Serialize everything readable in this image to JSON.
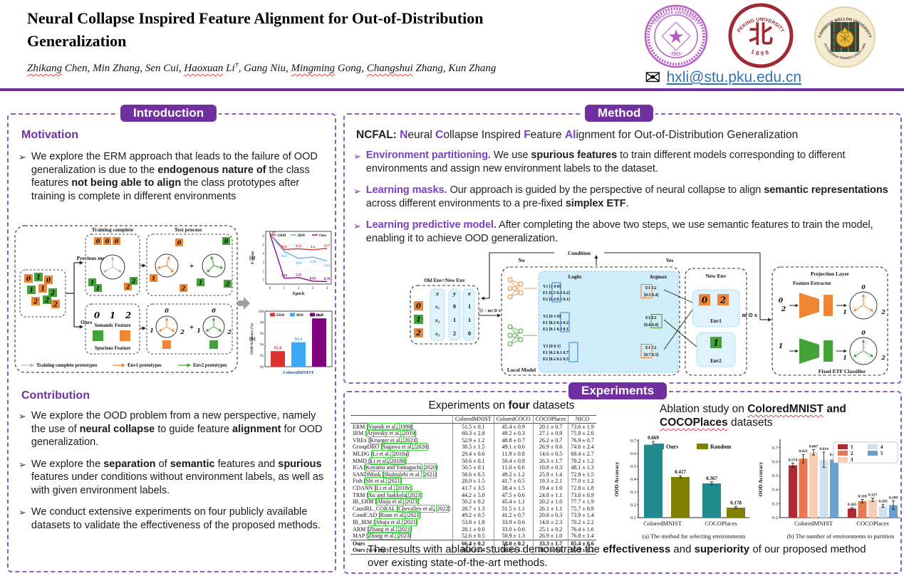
{
  "colors": {
    "purple": "#7030a0",
    "purple_light": "#7b3fbf",
    "border_purple": "#8b5fc0",
    "orange": "#ef8633",
    "green": "#44a338",
    "light_blue_fill": "#d6effc",
    "light_blue_stroke": "#7fc8e8",
    "email_blue": "#2e75b6",
    "erm_red": "#e03131",
    "irm_blue": "#3da8f5",
    "ours_purple": "#800080",
    "teal": "#1f8b8e",
    "olive": "#7f7f00"
  },
  "header": {
    "title_line1": "Neural Collapse Inspired Feature Alignment for Out-of-Distribution",
    "title_line2": "Generalization",
    "authors": [
      {
        "t": "Zhikang",
        "sq": true
      },
      {
        "t": " Chen, Min Zhang, Sen Cui, "
      },
      {
        "t": "Haoxuan",
        "sq": true
      },
      {
        "t": " Li"
      },
      {
        "t": "†",
        "sup": true
      },
      {
        "t": ", Gang Niu, "
      },
      {
        "t": "Mingming",
        "sq": true
      },
      {
        "t": " Gong, "
      },
      {
        "t": "Changshui",
        "sq": true
      },
      {
        "t": " Zhang, Kun Zhang"
      }
    ],
    "email": "hxli@stu.pku.edu.cn",
    "logos": {
      "tsinghua": {
        "ring_text": "TSINGHUA UNIVERSITY",
        "year": "1911",
        "color": "#b65ec6"
      },
      "peking": {
        "ring_text": "PEKING UNIVERSITY",
        "year": "1898",
        "emblem_glyph": "北",
        "color": "#9e2b33"
      },
      "cmu": {
        "ring_text": "CARNEGIE MELLON UNIVERSITY",
        "bottom_text": "PITTSBURGH PENNSYLVANIA 1900",
        "bg": "#f5ecd2",
        "color": "#3a3a5e"
      }
    }
  },
  "introduction": {
    "badge": "Introduction",
    "marker": "➢",
    "motivation_heading": "Motivation",
    "motivation_bullet": [
      {
        "t": "We explore the ERM approach that leads to the failure of OOD generalization is due to the "
      },
      {
        "t": "endogenous nature of",
        "b": true
      },
      {
        "t": " the class features "
      },
      {
        "t": "not being able to align",
        "b": true
      },
      {
        "t": " the class prototypes after training is complete in different environments"
      }
    ],
    "contribution_heading": "Contribution",
    "contribution_bullets": [
      [
        {
          "t": "We explore the OOD problem from a new perspective, namely the use of "
        },
        {
          "t": "neural collapse",
          "b": true
        },
        {
          "t": " to guide feature "
        },
        {
          "t": "alignment",
          "b": true
        },
        {
          "t": " for OOD generalization."
        }
      ],
      [
        {
          "t": "We explore the "
        },
        {
          "t": "separation",
          "b": true
        },
        {
          "t": " of "
        },
        {
          "t": "semantic",
          "b": true
        },
        {
          "t": " features and "
        },
        {
          "t": "spurious",
          "b": true
        },
        {
          "t": " features under conditions without environment labels, as well as with given environment labels."
        }
      ],
      [
        {
          "t": "We conduct extensive experiments on four publicly available datasets to validate the effectiveness of the proposed methods."
        }
      ]
    ],
    "figure": {
      "training_complete": "Training complete",
      "test_process": "Test process",
      "previous": "Previous methods",
      "ours": "Ours",
      "plus": "+",
      "semantic": "Semantic Feature",
      "spurious": "Spurious Feature",
      "semantic_digits": [
        "0",
        "1",
        "2"
      ],
      "cluster": [
        {
          "d": "0",
          "c": "o"
        },
        {
          "d": "1",
          "c": "g"
        },
        {
          "d": "0",
          "c": "o"
        },
        {
          "d": "1",
          "c": "g"
        },
        {
          "d": "1",
          "c": "o"
        },
        {
          "d": "2",
          "c": "g"
        },
        {
          "d": "2",
          "c": "o"
        },
        {
          "d": "2",
          "c": "g"
        },
        {
          "d": "2",
          "c": "o"
        }
      ],
      "train_top": [
        "0",
        "0",
        "0"
      ],
      "train_left": [
        {
          "d": "1",
          "c": "g"
        },
        {
          "d": "1",
          "c": "g"
        }
      ],
      "train_right": [
        {
          "d": "2",
          "c": "o"
        },
        {
          "d": "2",
          "c": "g"
        }
      ],
      "test_digits": [
        "0",
        "1",
        "2"
      ],
      "legend": [
        {
          "label": "Training complete prototypes",
          "color": "#b8b8b8"
        },
        {
          "label": "Env1 prototypes",
          "color": "#ef8633"
        },
        {
          "label": "Env2 prototypes",
          "color": "#44a338"
        }
      ]
    }
  },
  "method": {
    "badge": "Method",
    "headline": [
      {
        "t": "NCFAL:  ",
        "b": true
      },
      {
        "t": "N",
        "b": true,
        "c": "purple"
      },
      {
        "t": "eural "
      },
      {
        "t": "C",
        "b": true,
        "c": "purple"
      },
      {
        "t": "ollapse Inspired "
      },
      {
        "t": "F",
        "b": true,
        "c": "purple"
      },
      {
        "t": "eature "
      },
      {
        "t": "Al",
        "b": true,
        "c": "purple"
      },
      {
        "t": "ignment for Out-of-Distribution Generalization"
      }
    ],
    "bullets": [
      {
        "lead": "Environment partitioning.",
        "segments": [
          {
            "t": " We use "
          },
          {
            "t": "spurious features",
            "b": true
          },
          {
            "t": " to train different models corresponding to different environments and assign new environment labels to the dataset."
          }
        ]
      },
      {
        "lead": "Learning masks.",
        "segments": [
          {
            "t": " Our approach is guided by the perspective of neural collapse to align "
          },
          {
            "t": "semantic representations",
            "b": true
          },
          {
            "t": " across different environments to a pre-fixed "
          },
          {
            "t": "simplex ETF",
            "b": true
          },
          {
            "t": "."
          }
        ]
      },
      {
        "lead": "Learning predictive model.",
        "segments": [
          {
            "t": " After completing the above two steps, we use semantic features to train the model, enabling it to achieve OOD generalization."
          }
        ]
      }
    ],
    "diagram": {
      "condition": "Condition",
      "no": "No",
      "yes": "Yes",
      "old_env_title": "Old Env=New Env",
      "col_x": "x",
      "col_y": "y",
      "col_e": "e",
      "rows": [
        {
          "digit": "0",
          "c": "o",
          "x": "x₁",
          "y": "0",
          "e": "1"
        },
        {
          "digit": "1",
          "c": "g",
          "x": "x₂",
          "y": "1",
          "e": "1"
        },
        {
          "digit": "2",
          "c": "o",
          "x": "x₃",
          "y": "2",
          "e": "0"
        }
      ],
      "mask_out": "(1 − m) ⊙ x",
      "mask_in": "m ⊙ x",
      "local_model": "Local Model",
      "logits_title": "Logits",
      "argmax_title": "Argmax",
      "argmax_header": "E1 E2",
      "logit_groups": [
        {
          "y": "Y1 [1    0    0]",
          "e1": "E1 [0.5 0.3 0.2]",
          "e2": "E2 [0.4 0.5 0.1]",
          "argmax": "[0.5 0.4]",
          "pick": "E1",
          "box": "o",
          "col": 0
        },
        {
          "y": "Y2 [0    1    0]",
          "e1": "E1 [0.2 0.6 0.2]",
          "e2": "E2 [0.1 0.8 0.1]",
          "argmax": "[0.6 0.8]",
          "pick": "E2",
          "box": "g",
          "col": 1
        },
        {
          "y": "Y3 [0    0    1]",
          "e1": "E1 [0.2 0.1 0.7]",
          "e2": "E2 [0.2 0.2 0.5]",
          "argmax": "[0.7 0.5]",
          "pick": "E1",
          "box": "o",
          "col": 2
        }
      ],
      "new_env": "New Env",
      "env1": "Env1",
      "env2": "Env2",
      "env1_digits": [
        "0",
        "2"
      ],
      "env2_digits": [
        "1"
      ],
      "projection": "Projection Layer",
      "feature_extractor": "Feature Extractor",
      "etf": "Fixed ETF Classifier",
      "proj_top_digits": [
        "0",
        "2"
      ],
      "proj_bottom_digits": [
        "1"
      ],
      "proj_circle_digits": [
        "0",
        "1",
        "2"
      ]
    }
  },
  "experiments": {
    "badge": "Experiments",
    "table_title": [
      {
        "t": "Experiments on "
      },
      {
        "t": "four",
        "b": true
      },
      {
        "t": " datasets"
      }
    ],
    "table": {
      "columns": [
        "",
        "ColoredMNIST",
        "ColoredCOCO",
        "COCOPlaces",
        "NICO"
      ],
      "rows": [
        [
          "ERM",
          "Vapnik et al.",
          "1998",
          "51.5 ± 0.1",
          "45.4 ± 0.9",
          "20.1 ± 0.7",
          "73.6 ± 1.9"
        ],
        [
          "IRM",
          "Arjovsky et al.",
          "2019",
          "60.3 ± 2.8",
          "49.2 ± 0.3",
          "27.1 ± 0.9",
          "75.8 ± 2.0"
        ],
        [
          "VREx",
          "Krueger et al.",
          "2021",
          "52.9 ± 1.2",
          "48.8 ± 0.7",
          "26.2 ± 0.7",
          "76.9 ± 0.7"
        ],
        [
          "GroupDRO",
          "Sagawa et al.",
          "2020",
          "38.5 ± 1.5",
          "49.1 ± 0.6",
          "26.9 ± 0.6",
          "74.6 ± 2.4"
        ],
        [
          "MLDG",
          "Li et al.",
          "2018a",
          "29.4 ± 0.6",
          "11.9 ± 0.8",
          "14.6 ± 0.5",
          "68.4 ± 2.7"
        ],
        [
          "MMD",
          "Li et al.",
          "2018b",
          "50.6 ± 0.1",
          "50.4 ± 0.8",
          "26.3 ± 1.7",
          "78.2 ± 1.2"
        ],
        [
          "IGA",
          "Koyama and Yamaguchi",
          "2020",
          "50.5 ± 0.1",
          "11.0 ± 0.6",
          "10.8 ± 0.3",
          "48.1 ± 1.3"
        ],
        [
          "SANDMask",
          "Shahtalebi et al.",
          "2021",
          "58.6 ± 6.5",
          "49.2 ± 1.2",
          "25.9 ± 1.4",
          "72.8 ± 1.5"
        ],
        [
          "Fish",
          "Shi et al.",
          "2021",
          "28.0 ± 1.5",
          "41.7 ± 0.5",
          "19.3 ± 2.1",
          "77.0 ± 1.2"
        ],
        [
          "CDANN",
          "Li et al.",
          "2018c",
          "41.7 ± 3.5",
          "38.4 ± 1.5",
          "19.4 ± 1.0",
          "72.8 ± 1.8"
        ],
        [
          "TRM",
          "Xu and Jaakkola",
          "2021",
          "44.2 ± 5.0",
          "47.5 ± 0.6",
          "24.8 ± 1.1",
          "73.0 ± 0.9"
        ],
        [
          "IB_ERM",
          "Ahuja et al.",
          "2021",
          "50.2 ± 0.2",
          "45.4 ± 1.1",
          "20.2 ± 1.0",
          "77.7 ± 1.9"
        ],
        [
          "CausIRL_CORAL",
          "Chevalley et al.",
          "2022",
          "28.7 ± 1.3",
          "51.5 ± 1.1",
          "26.1 ± 1.1",
          "75.7 ± 0.9"
        ],
        [
          "CondCAD",
          "Ruan et al.",
          "2021",
          "49.2 ± 0.5",
          "41.2 ± 0.7",
          "20.8 ± 0.3",
          "73.9 ± 1.4"
        ],
        [
          "IB_IRM",
          "Ahuja et al.",
          "2021",
          "53.8 ± 1.8",
          "33.9 ± 0.6",
          "14.8 ± 2.3",
          "70.2 ± 2.2"
        ],
        [
          "ARM",
          "Zhang et al.",
          "2021",
          "28.1 ± 0.0",
          "33.0 ± 0.6",
          "25.1 ± 0.2",
          "76.4 ± 1.6"
        ],
        [
          "MAP",
          "Zhang et al.",
          "2023",
          "52.6 ± 0.5",
          "50.9 ± 1.3",
          "26.9 ± 1.0",
          "76.8 ± 1.4"
        ]
      ],
      "ours_rows": [
        [
          "Ours",
          "66.4 ± 0.2",
          "58.0 ± 0.2",
          "33.3 ± 1.7",
          "85.4 ± 0.6"
        ],
        [
          "Ours (w/o env)",
          "66.9 ± 2.4",
          "56.9 ± 1.1",
          "36.7 ± 0.9",
          "85.9 ± 0.2"
        ]
      ]
    },
    "ablation_title": [
      {
        "t": "Ablation study on "
      },
      {
        "t": "ColoredMNIST",
        "b": true,
        "sq": true
      },
      {
        "t": " and ",
        "b": true
      },
      {
        "t": "COCOPlaces",
        "b": true,
        "sq": true
      },
      {
        "t": " datasets"
      }
    ],
    "conclusion": [
      {
        "t": "The results with ablation studies demonstrate the "
      },
      {
        "t": "effectiveness",
        "b": true
      },
      {
        "t": " and "
      },
      {
        "t": "superiority",
        "b": true
      },
      {
        "t": " of our proposed method over existing state-of-the-art methods."
      }
    ]
  },
  "chart_data": [
    {
      "id": "fnorm",
      "type": "line",
      "panel_label": "(a)",
      "xlabel": "Epoch",
      "ylabel": "F-norm",
      "x": [
        0,
        1,
        2,
        3,
        4
      ],
      "ylim": [
        0.5,
        6.5
      ],
      "yticks": [
        1,
        2,
        3,
        4,
        5,
        6
      ],
      "start_label": "6.17",
      "series": [
        {
          "name": "ERM",
          "color": "#e03131",
          "values": [
            6.17,
            4.45,
            4.52,
            4.4,
            4.57
          ],
          "labels": [
            "4.45",
            "4.52",
            "4.4",
            "4.57"
          ],
          "dy": -3
        },
        {
          "name": "IRM",
          "color": "#4dabf7",
          "values": [
            6.17,
            4.21,
            3.43,
            3.58,
            3.14
          ],
          "labels": [
            "4.21",
            "3.43",
            "3.58",
            "3.14"
          ],
          "dy": 8
        },
        {
          "name": "Ours",
          "color": "#8b008b",
          "values": [
            6.17,
            1.16,
            1.25,
            0.83,
            0.79
          ],
          "labels": [
            "1.16",
            "1.25",
            "0.83",
            "0.79"
          ],
          "dy": -3
        }
      ]
    },
    {
      "id": "ood_cmnist",
      "type": "bar",
      "panel_label": "(b)",
      "ylabel": "OOD Accuracy (%)",
      "categories": [
        "ColoredMNIST"
      ],
      "ylim": [
        90,
        100
      ],
      "yticks": [
        90,
        92,
        94,
        96,
        98,
        100
      ],
      "series": [
        {
          "name": "ERM",
          "color": "#e03131",
          "values": [
            92.8
          ],
          "labels": [
            "92.8"
          ]
        },
        {
          "name": "IRM",
          "color": "#3da8f5",
          "values": [
            94.4
          ],
          "labels": [
            "94.4"
          ]
        },
        {
          "name": "Ours",
          "color": "#800080",
          "values": [
            98.7
          ],
          "labels": [
            "98.7"
          ]
        }
      ]
    },
    {
      "id": "ablation_env_select",
      "type": "bar",
      "caption": "(a) The method for selecting environments",
      "ylabel": "OOD Accuracy",
      "categories": [
        "ColoredMNIST",
        "COCOPlaces"
      ],
      "ylim": [
        0.1,
        0.7
      ],
      "yticks": [
        0.1,
        0.2,
        0.3,
        0.4,
        0.5,
        0.6,
        0.7
      ],
      "series": [
        {
          "name": "Ours",
          "color": "#1f8b8e",
          "values": [
            0.669,
            0.367
          ],
          "labels": [
            "0.669",
            "0.367"
          ],
          "err": [
            0.025,
            0.012
          ]
        },
        {
          "name": "Random",
          "color": "#7f7f00",
          "values": [
            0.417,
            0.178
          ],
          "labels": [
            "0.417",
            "0.178"
          ],
          "err": [
            0.01,
            0.008
          ]
        }
      ]
    },
    {
      "id": "ablation_env_count",
      "type": "bar",
      "caption": "(b) The number of environments to partition",
      "ylabel": "OOD Accuracy",
      "categories": [
        "ColoredMNIST",
        "COCOPlaces"
      ],
      "ylim": [
        0.2,
        0.75
      ],
      "yticks": [
        0.2,
        0.3,
        0.4,
        0.5,
        0.6,
        0.7
      ],
      "series": [
        {
          "name": "1",
          "color": "#b02a33",
          "values": [
            0.574,
            0.265
          ],
          "labels": [
            "0.574",
            "0.265"
          ],
          "err": [
            0.015,
            0.006
          ]
        },
        {
          "name": "2",
          "color": "#e8784f",
          "values": [
            0.622,
            0.318
          ],
          "labels": [
            "0.622",
            "0.318"
          ],
          "err": [
            0.03,
            0.012
          ]
        },
        {
          "name": "3",
          "color": "#f8cdb4",
          "values": [
            0.667,
            0.327
          ],
          "labels": [
            "0.667",
            "0.327"
          ],
          "err": [
            0.02,
            0.012
          ]
        },
        {
          "name": "4",
          "color": "#cfe0ef",
          "values": [
            0.614,
            0.283
          ],
          "labels": [
            "0.614",
            "0.283"
          ],
          "err": [
            0.055,
            0.01
          ]
        },
        {
          "name": "5",
          "color": "#6ba0cd",
          "values": [
            0.616,
            0.289
          ],
          "labels": [
            "0.616",
            "0.289"
          ],
          "err": [
            0.012,
            0.03
          ]
        }
      ]
    }
  ]
}
